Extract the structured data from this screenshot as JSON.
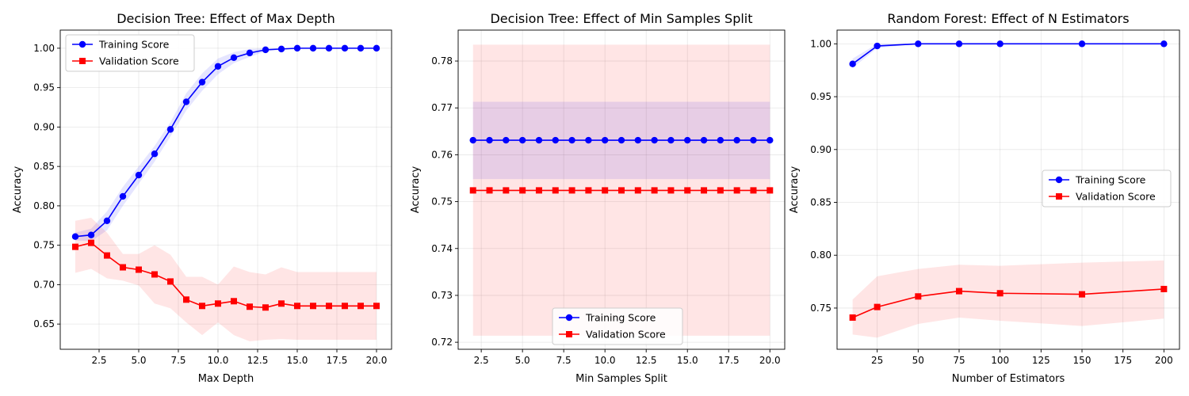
{
  "figure": {
    "background": "#ffffff",
    "train_color": "#0000ff",
    "val_color": "#ff0000",
    "train_band_color": "#0000ff",
    "val_band_color": "#ff0000"
  },
  "chart_data": [
    {
      "type": "line",
      "title": "Decision Tree: Effect of Max Depth",
      "xlabel": "Max Depth",
      "ylabel": "Accuracy",
      "xlim": [
        0.05,
        20.95
      ],
      "ylim": [
        0.618,
        1.023
      ],
      "xticks": [
        2.5,
        5.0,
        7.5,
        10.0,
        12.5,
        15.0,
        17.5,
        20.0
      ],
      "xtick_labels": [
        "2.5",
        "5.0",
        "7.5",
        "10.0",
        "12.5",
        "15.0",
        "17.5",
        "20.0"
      ],
      "yticks": [
        0.65,
        0.7,
        0.75,
        0.8,
        0.85,
        0.9,
        0.95,
        1.0
      ],
      "ytick_labels": [
        "0.65",
        "0.70",
        "0.75",
        "0.80",
        "0.85",
        "0.90",
        "0.95",
        "1.00"
      ],
      "grid": true,
      "legend_position": "top-left",
      "x": [
        1,
        2,
        3,
        4,
        5,
        6,
        7,
        8,
        9,
        10,
        11,
        12,
        13,
        14,
        15,
        16,
        17,
        18,
        19,
        20
      ],
      "series": [
        {
          "name": "Training Score",
          "marker": "circle",
          "values": [
            0.761,
            0.763,
            0.781,
            0.812,
            0.839,
            0.866,
            0.897,
            0.932,
            0.957,
            0.977,
            0.988,
            0.994,
            0.998,
            0.999,
            1.0,
            1.0,
            1.0,
            1.0,
            1.0,
            1.0
          ],
          "band_lower": [
            0.756,
            0.755,
            0.769,
            0.8,
            0.828,
            0.856,
            0.888,
            0.921,
            0.946,
            0.967,
            0.981,
            0.989,
            0.996,
            0.998,
            0.999,
            1.0,
            1.0,
            1.0,
            1.0,
            1.0
          ],
          "band_upper": [
            0.766,
            0.771,
            0.793,
            0.824,
            0.85,
            0.876,
            0.906,
            0.943,
            0.968,
            0.987,
            0.995,
            0.999,
            1.0,
            1.0,
            1.0,
            1.0,
            1.0,
            1.0,
            1.0,
            1.0
          ]
        },
        {
          "name": "Validation Score",
          "marker": "square",
          "values": [
            0.748,
            0.753,
            0.737,
            0.722,
            0.719,
            0.713,
            0.704,
            0.681,
            0.673,
            0.676,
            0.679,
            0.672,
            0.671,
            0.676,
            0.673,
            0.673,
            0.673,
            0.673,
            0.673,
            0.673
          ],
          "band_lower": [
            0.715,
            0.72,
            0.708,
            0.705,
            0.699,
            0.676,
            0.67,
            0.652,
            0.636,
            0.652,
            0.636,
            0.628,
            0.63,
            0.631,
            0.63,
            0.63,
            0.63,
            0.63,
            0.63,
            0.63
          ],
          "band_upper": [
            0.781,
            0.785,
            0.766,
            0.739,
            0.739,
            0.75,
            0.738,
            0.71,
            0.71,
            0.7,
            0.723,
            0.716,
            0.713,
            0.722,
            0.716,
            0.716,
            0.716,
            0.716,
            0.716,
            0.716
          ]
        }
      ]
    },
    {
      "type": "line",
      "title": "Decision Tree: Effect of Min Samples Split",
      "xlabel": "Min Samples Split",
      "ylabel": "Accuracy",
      "xlim": [
        1.1,
        20.9
      ],
      "ylim": [
        0.7185,
        0.7866
      ],
      "xticks": [
        2.5,
        5.0,
        7.5,
        10.0,
        12.5,
        15.0,
        17.5,
        20.0
      ],
      "xtick_labels": [
        "2.5",
        "5.0",
        "7.5",
        "10.0",
        "12.5",
        "15.0",
        "17.5",
        "20.0"
      ],
      "yticks": [
        0.72,
        0.73,
        0.74,
        0.75,
        0.76,
        0.77,
        0.78
      ],
      "ytick_labels": [
        "0.72",
        "0.73",
        "0.74",
        "0.75",
        "0.76",
        "0.77",
        "0.78"
      ],
      "grid": true,
      "legend_position": "bottom-center",
      "x": [
        2,
        3,
        4,
        5,
        6,
        7,
        8,
        9,
        10,
        11,
        12,
        13,
        14,
        15,
        16,
        17,
        18,
        19,
        20
      ],
      "series": [
        {
          "name": "Training Score",
          "marker": "circle",
          "values": [
            0.7631,
            0.7631,
            0.7631,
            0.7631,
            0.7631,
            0.7631,
            0.7631,
            0.7631,
            0.7631,
            0.7631,
            0.7631,
            0.7631,
            0.7631,
            0.7631,
            0.7631,
            0.7631,
            0.7631,
            0.7631,
            0.7631
          ],
          "band_lower": [
            0.7548,
            0.7548,
            0.7548,
            0.7548,
            0.7548,
            0.7548,
            0.7548,
            0.7548,
            0.7548,
            0.7548,
            0.7548,
            0.7548,
            0.7548,
            0.7548,
            0.7548,
            0.7548,
            0.7548,
            0.7548,
            0.7548
          ],
          "band_upper": [
            0.7713,
            0.7713,
            0.7713,
            0.7713,
            0.7713,
            0.7713,
            0.7713,
            0.7713,
            0.7713,
            0.7713,
            0.7713,
            0.7713,
            0.7713,
            0.7713,
            0.7713,
            0.7713,
            0.7713,
            0.7713,
            0.7713
          ]
        },
        {
          "name": "Validation Score",
          "marker": "square",
          "values": [
            0.7524,
            0.7524,
            0.7524,
            0.7524,
            0.7524,
            0.7524,
            0.7524,
            0.7524,
            0.7524,
            0.7524,
            0.7524,
            0.7524,
            0.7524,
            0.7524,
            0.7524,
            0.7524,
            0.7524,
            0.7524,
            0.7524
          ],
          "band_lower": [
            0.7214,
            0.7214,
            0.7214,
            0.7214,
            0.7214,
            0.7214,
            0.7214,
            0.7214,
            0.7214,
            0.7214,
            0.7214,
            0.7214,
            0.7214,
            0.7214,
            0.7214,
            0.7214,
            0.7214,
            0.7214,
            0.7214
          ],
          "band_upper": [
            0.7835,
            0.7835,
            0.7835,
            0.7835,
            0.7835,
            0.7835,
            0.7835,
            0.7835,
            0.7835,
            0.7835,
            0.7835,
            0.7835,
            0.7835,
            0.7835,
            0.7835,
            0.7835,
            0.7835,
            0.7835,
            0.7835
          ]
        }
      ]
    },
    {
      "type": "line",
      "title": "Random Forest: Effect of N Estimators",
      "xlabel": "Number of Estimators",
      "ylabel": "Accuracy",
      "xlim": [
        0.5,
        209.5
      ],
      "ylim": [
        0.711,
        1.013
      ],
      "xticks": [
        25,
        50,
        75,
        100,
        125,
        150,
        175,
        200
      ],
      "xtick_labels": [
        "25",
        "50",
        "75",
        "100",
        "125",
        "150",
        "175",
        "200"
      ],
      "yticks": [
        0.75,
        0.8,
        0.85,
        0.9,
        0.95,
        1.0
      ],
      "ytick_labels": [
        "0.75",
        "0.80",
        "0.85",
        "0.90",
        "0.95",
        "1.00"
      ],
      "grid": true,
      "legend_position": "center-right",
      "x": [
        10,
        25,
        50,
        75,
        100,
        150,
        200
      ],
      "series": [
        {
          "name": "Training Score",
          "marker": "circle",
          "values": [
            0.981,
            0.998,
            1.0,
            1.0,
            1.0,
            1.0,
            1.0
          ],
          "band_lower": [
            0.977,
            0.996,
            1.0,
            1.0,
            1.0,
            1.0,
            1.0
          ],
          "band_upper": [
            0.986,
            1.0,
            1.0,
            1.0,
            1.0,
            1.0,
            1.0
          ]
        },
        {
          "name": "Validation Score",
          "marker": "square",
          "values": [
            0.741,
            0.751,
            0.761,
            0.766,
            0.764,
            0.763,
            0.768
          ],
          "band_lower": [
            0.725,
            0.722,
            0.735,
            0.741,
            0.738,
            0.733,
            0.74
          ],
          "band_upper": [
            0.758,
            0.78,
            0.787,
            0.791,
            0.79,
            0.793,
            0.795
          ]
        }
      ]
    }
  ]
}
